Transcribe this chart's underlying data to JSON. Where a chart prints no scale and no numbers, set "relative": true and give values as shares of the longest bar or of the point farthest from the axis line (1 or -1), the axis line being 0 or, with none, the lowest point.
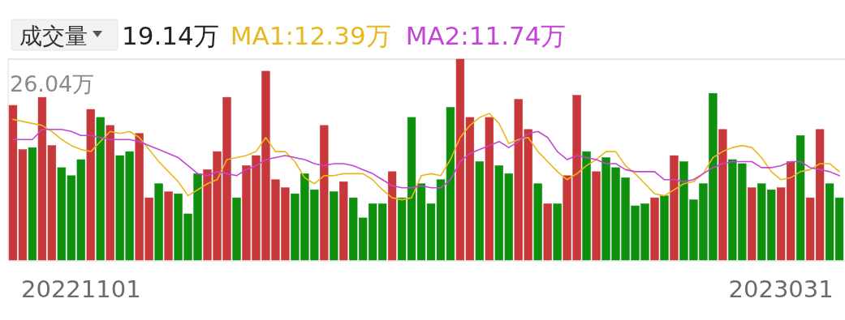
{
  "chart_data": {
    "type": "bar",
    "relative": true,
    "title": "成交量",
    "subtitle": "19.14万",
    "legend": "top",
    "annotations": [
      "26.04万"
    ],
    "categories": [
      null,
      null,
      null,
      null,
      null,
      null,
      null,
      "20221101",
      null,
      null,
      null,
      null,
      null,
      null,
      null,
      null,
      null,
      null,
      null,
      null,
      null,
      null,
      null,
      null,
      null,
      null,
      null,
      null,
      null,
      null,
      null,
      null,
      null,
      null,
      null,
      null,
      null,
      null,
      null,
      null,
      null,
      null,
      null,
      null,
      null,
      null,
      null,
      null,
      null,
      null,
      null,
      null,
      null,
      null,
      null,
      null,
      null,
      null,
      null,
      null,
      null,
      null,
      null,
      null,
      null,
      null,
      null,
      null,
      null,
      null,
      null,
      null,
      null,
      null,
      null,
      null,
      null,
      null,
      null,
      "2023031",
      null,
      null,
      null,
      null,
      null,
      null
    ],
    "series": [
      {
        "values": [
          0.77,
          0.55,
          0.56,
          0.81,
          0.57,
          0.46,
          0.42,
          0.5,
          0.75,
          0.71,
          0.67,
          0.52,
          0.54,
          0.63,
          0.31,
          0.38,
          0.34,
          0.33,
          0.23,
          0.43,
          0.45,
          0.54,
          0.81,
          0.31,
          0.47,
          0.52,
          0.94,
          0.4,
          0.36,
          0.33,
          0.43,
          0.35,
          0.67,
          0.34,
          0.39,
          0.31,
          0.21,
          0.28,
          0.28,
          0.44,
          0.31,
          0.71,
          0.38,
          0.28,
          0.4,
          0.76,
          1,
          0.71,
          0.49,
          0.71,
          0.47,
          0.43,
          0.8,
          0.65,
          0.38,
          0.28,
          0.28,
          0.42,
          0.82,
          0.54,
          0.44,
          0.51,
          0.46,
          0.41,
          0.27,
          0.28,
          0.31,
          0.32,
          0.52,
          0.49,
          0.3,
          0.38,
          0.83,
          0.65,
          0.5,
          0.48,
          0.36,
          0.38,
          0.35,
          0.36,
          0.49,
          0.62,
          0.31,
          0.65,
          0.38,
          0.31
        ],
        "colors": [
          "#c8383a",
          "#c8383a",
          "#0e900e",
          "#c8383a",
          "#c8383a",
          "#0e900e",
          "#0e900e",
          "#0e900e",
          "#c8383a",
          "#0e900e",
          "#c8383a",
          "#0e900e",
          "#0e900e",
          "#c8383a",
          "#c8383a",
          "#0e900e",
          "#c8383a",
          "#0e900e",
          "#0e900e",
          "#0e900e",
          "#c8383a",
          "#c8383a",
          "#c8383a",
          "#0e900e",
          "#c8383a",
          "#c8383a",
          "#c8383a",
          "#c8383a",
          "#c8383a",
          "#0e900e",
          "#0e900e",
          "#0e900e",
          "#c8383a",
          "#0e900e",
          "#c8383a",
          "#0e900e",
          "#0e900e",
          "#0e900e",
          "#0e900e",
          "#c8383a",
          "#0e900e",
          "#0e900e",
          "#0e900e",
          "#0e900e",
          "#0e900e",
          "#0e900e",
          "#c8383a",
          "#c8383a",
          "#0e900e",
          "#c8383a",
          "#0e900e",
          "#0e900e",
          "#c8383a",
          "#c8383a",
          "#0e900e",
          "#c8383a",
          "#0e900e",
          "#c8383a",
          "#c8383a",
          "#0e900e",
          "#c8383a",
          "#0e900e",
          "#0e900e",
          "#0e900e",
          "#0e900e",
          "#0e900e",
          "#c8383a",
          "#0e900e",
          "#c8383a",
          "#0e900e",
          "#0e900e",
          "#0e900e",
          "#0e900e",
          "#c8383a",
          "#0e900e",
          "#0e900e",
          "#c8383a",
          "#0e900e",
          "#0e900e",
          "#c8383a",
          "#c8383a",
          "#0e900e",
          "#c8383a",
          "#c8383a",
          "#0e900e",
          "#0e900e"
        ]
      },
      {
        "type": "line",
        "name": "MA1:12.39万",
        "color": "#e8b820",
        "values": [
          0.7,
          0.69,
          0.68,
          0.67,
          0.64,
          0.6,
          0.57,
          0.55,
          0.54,
          0.59,
          0.64,
          0.63,
          0.64,
          0.61,
          0.55,
          0.49,
          0.44,
          0.39,
          0.32,
          0.35,
          0.38,
          0.4,
          0.5,
          0.51,
          0.52,
          0.54,
          0.61,
          0.54,
          0.54,
          0.49,
          0.41,
          0.38,
          0.42,
          0.42,
          0.43,
          0.43,
          0.43,
          0.4,
          0.35,
          0.31,
          0.3,
          0.31,
          0.42,
          0.43,
          0.42,
          0.5,
          0.61,
          0.67,
          0.71,
          0.73,
          0.68,
          0.58,
          0.6,
          0.61,
          0.54,
          0.49,
          0.44,
          0.4,
          0.43,
          0.47,
          0.5,
          0.54,
          0.54,
          0.47,
          0.43,
          0.38,
          0.33,
          0.32,
          0.35,
          0.38,
          0.39,
          0.43,
          0.51,
          0.54,
          0.56,
          0.57,
          0.56,
          0.51,
          0.44,
          0.4,
          0.41,
          0.44,
          0.45,
          0.48,
          0.48,
          0.44
        ]
      },
      {
        "type": "line",
        "name": "MA2:11.74万",
        "color": "#c444d4",
        "values": [
          0.6,
          0.6,
          0.6,
          0.65,
          0.65,
          0.65,
          0.64,
          0.62,
          0.62,
          0.61,
          0.6,
          0.6,
          0.6,
          0.59,
          0.57,
          0.55,
          0.53,
          0.51,
          0.47,
          0.43,
          0.42,
          0.44,
          0.43,
          0.42,
          0.45,
          0.47,
          0.5,
          0.51,
          0.52,
          0.51,
          0.5,
          0.48,
          0.47,
          0.48,
          0.48,
          0.47,
          0.45,
          0.43,
          0.4,
          0.37,
          0.36,
          0.36,
          0.37,
          0.36,
          0.36,
          0.4,
          0.49,
          0.53,
          0.55,
          0.57,
          0.59,
          0.56,
          0.59,
          0.63,
          0.64,
          0.61,
          0.54,
          0.5,
          0.52,
          0.51,
          0.5,
          0.48,
          0.48,
          0.45,
          0.44,
          0.44,
          0.44,
          0.4,
          0.4,
          0.39,
          0.4,
          0.43,
          0.46,
          0.48,
          0.49,
          0.49,
          0.49,
          0.46,
          0.46,
          0.47,
          0.49,
          0.49,
          0.46,
          0.45,
          0.44,
          0.42
        ]
      }
    ]
  }
}
